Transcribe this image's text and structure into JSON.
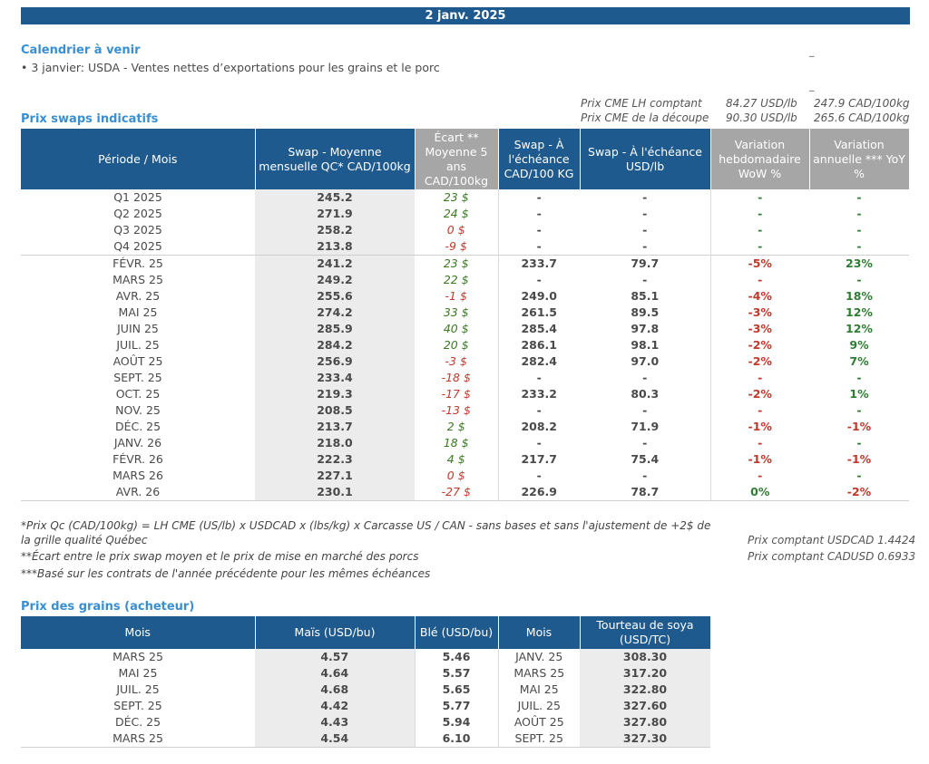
{
  "date": "2 janv. 2025",
  "calendar": {
    "title": "Calendrier à venir",
    "items": [
      "• 3 janvier: USDA - Ventes nettes d’exportations pour les grains et le porc"
    ],
    "marks": [
      "_",
      "_"
    ]
  },
  "cme": {
    "rows": [
      {
        "label": "Prix CME LH comptant",
        "usd": "84.27 USD/lb",
        "cad": "247.9 CAD/100kg"
      },
      {
        "label": "Prix CME de la découpe",
        "usd": "90.30 USD/lb",
        "cad": "265.6 CAD/100kg"
      }
    ]
  },
  "swaps": {
    "title": "Prix swaps indicatifs",
    "headers": {
      "period": "Période / Mois",
      "qc": "Swap - Moyenne mensuelle QC* CAD/100kg",
      "ecart": "Écart ** Moyenne 5 ans CAD/100kg",
      "echeance_cad": "Swap - À l'échéance CAD/100 KG",
      "echeance_usd": "Swap - À l'échéance USD/lb",
      "wow": "Variation hebdomadaire WoW %",
      "yoy": "Variation annuelle *** YoY %"
    },
    "quarters": [
      {
        "period": "Q1 2025",
        "qc": "245.2",
        "ecart": "23 $",
        "sign": "pos",
        "cad": "-",
        "usd": "-",
        "wow": "-",
        "yoy": "-"
      },
      {
        "period": "Q2 2025",
        "qc": "271.9",
        "ecart": "24 $",
        "sign": "pos",
        "cad": "-",
        "usd": "-",
        "wow": "-",
        "yoy": "-"
      },
      {
        "period": "Q3 2025",
        "qc": "258.2",
        "ecart": "0 $",
        "sign": "neg",
        "cad": "-",
        "usd": "-",
        "wow": "-",
        "yoy": "-"
      },
      {
        "period": "Q4 2025",
        "qc": "213.8",
        "ecart": "-9 $",
        "sign": "neg",
        "cad": "-",
        "usd": "-",
        "wow": "-",
        "yoy": "-"
      }
    ],
    "months": [
      {
        "period": "FÉVR. 25",
        "qc": "241.2",
        "ecart": "23 $",
        "sign": "pos",
        "cad": "233.7",
        "usd": "79.7",
        "wow": "-5%",
        "wow_c": "red",
        "yoy": "23%",
        "yoy_c": "green"
      },
      {
        "period": "MARS 25",
        "qc": "249.2",
        "ecart": "22 $",
        "sign": "pos",
        "cad": "-",
        "usd": "-",
        "wow": "-",
        "wow_c": "red",
        "yoy": "-",
        "yoy_c": "green"
      },
      {
        "period": "AVR. 25",
        "qc": "255.6",
        "ecart": "-1 $",
        "sign": "neg",
        "cad": "249.0",
        "usd": "85.1",
        "wow": "-4%",
        "wow_c": "red",
        "yoy": "18%",
        "yoy_c": "green"
      },
      {
        "period": "MAI 25",
        "qc": "274.2",
        "ecart": "33 $",
        "sign": "pos",
        "cad": "261.5",
        "usd": "89.5",
        "wow": "-3%",
        "wow_c": "red",
        "yoy": "12%",
        "yoy_c": "green"
      },
      {
        "period": "JUIN 25",
        "qc": "285.9",
        "ecart": "40 $",
        "sign": "pos",
        "cad": "285.4",
        "usd": "97.8",
        "wow": "-3%",
        "wow_c": "red",
        "yoy": "12%",
        "yoy_c": "green"
      },
      {
        "period": "JUIL. 25",
        "qc": "284.2",
        "ecart": "20 $",
        "sign": "pos",
        "cad": "286.1",
        "usd": "98.1",
        "wow": "-2%",
        "wow_c": "red",
        "yoy": "9%",
        "yoy_c": "green"
      },
      {
        "period": "AOÛT 25",
        "qc": "256.9",
        "ecart": "-3 $",
        "sign": "neg",
        "cad": "282.4",
        "usd": "97.0",
        "wow": "-2%",
        "wow_c": "red",
        "yoy": "7%",
        "yoy_c": "green"
      },
      {
        "period": "SEPT. 25",
        "qc": "233.4",
        "ecart": "-18 $",
        "sign": "neg",
        "cad": "-",
        "usd": "-",
        "wow": "-",
        "wow_c": "red",
        "yoy": "-",
        "yoy_c": "green"
      },
      {
        "period": "OCT. 25",
        "qc": "219.3",
        "ecart": "-17 $",
        "sign": "neg",
        "cad": "233.2",
        "usd": "80.3",
        "wow": "-2%",
        "wow_c": "red",
        "yoy": "1%",
        "yoy_c": "green"
      },
      {
        "period": "NOV. 25",
        "qc": "208.5",
        "ecart": "-13 $",
        "sign": "neg",
        "cad": "-",
        "usd": "-",
        "wow": "-",
        "wow_c": "red",
        "yoy": "-",
        "yoy_c": "green"
      },
      {
        "period": "DÉC. 25",
        "qc": "213.7",
        "ecart": "2 $",
        "sign": "pos",
        "cad": "208.2",
        "usd": "71.9",
        "wow": "-1%",
        "wow_c": "red",
        "yoy": "-1%",
        "yoy_c": "red"
      },
      {
        "period": "JANV. 26",
        "qc": "218.0",
        "ecart": "18 $",
        "sign": "pos",
        "cad": "-",
        "usd": "-",
        "wow": "-",
        "wow_c": "red",
        "yoy": "-",
        "yoy_c": "green"
      },
      {
        "period": "FÉVR. 26",
        "qc": "222.3",
        "ecart": "4 $",
        "sign": "pos",
        "cad": "217.7",
        "usd": "75.4",
        "wow": "-1%",
        "wow_c": "red",
        "yoy": "-1%",
        "yoy_c": "red"
      },
      {
        "period": "MARS 26",
        "qc": "227.1",
        "ecart": "0 $",
        "sign": "neg",
        "cad": "-",
        "usd": "-",
        "wow": "-",
        "wow_c": "red",
        "yoy": "-",
        "yoy_c": "green"
      },
      {
        "period": "AVR. 26",
        "qc": "230.1",
        "ecart": "-27 $",
        "sign": "neg",
        "cad": "226.9",
        "usd": "78.7",
        "wow": "0%",
        "wow_c": "green",
        "yoy": "-2%",
        "yoy_c": "red"
      }
    ]
  },
  "notes": {
    "n1": "*Prix Qc (CAD/100kg) = LH CME (US/lb) x USDCAD x (lbs/kg) x Carcasse US / CAN - sans bases et sans l'ajustement de +2$ de la grille qualité Québec",
    "n2": "**Écart entre le prix swap moyen et le prix de mise en marché des porcs",
    "n3": "***Basé sur les contrats de l'année précédente pour les mêmes échéances",
    "spot1": "Prix comptant USDCAD 1.4424",
    "spot2": "Prix comptant CADUSD 0.6933"
  },
  "grains": {
    "title": "Prix des grains (acheteur)",
    "headers": {
      "mois": "Mois",
      "mais": "Maïs (USD/bu)",
      "ble": "Blé (USD/bu)",
      "mois2": "Mois",
      "soya": "Tourteau de soya (USD/TC)"
    },
    "rows": [
      {
        "mois": "MARS 25",
        "mais": "4.57",
        "ble": "5.46",
        "mois2": "JANV. 25",
        "soya": "308.30"
      },
      {
        "mois": "MAI 25",
        "mais": "4.64",
        "ble": "5.57",
        "mois2": "MARS 25",
        "soya": "317.20"
      },
      {
        "mois": "JUIL. 25",
        "mais": "4.68",
        "ble": "5.65",
        "mois2": "MAI 25",
        "soya": "322.80"
      },
      {
        "mois": "SEPT. 25",
        "mais": "4.42",
        "ble": "5.77",
        "mois2": "JUIL. 25",
        "soya": "327.60"
      },
      {
        "mois": "DÉC. 25",
        "mais": "4.43",
        "ble": "5.94",
        "mois2": "AOÛT 25",
        "soya": "327.80"
      },
      {
        "mois": "MARS 25",
        "mais": "4.54",
        "ble": "6.10",
        "mois2": "SEPT. 25",
        "soya": "327.30"
      }
    ]
  }
}
